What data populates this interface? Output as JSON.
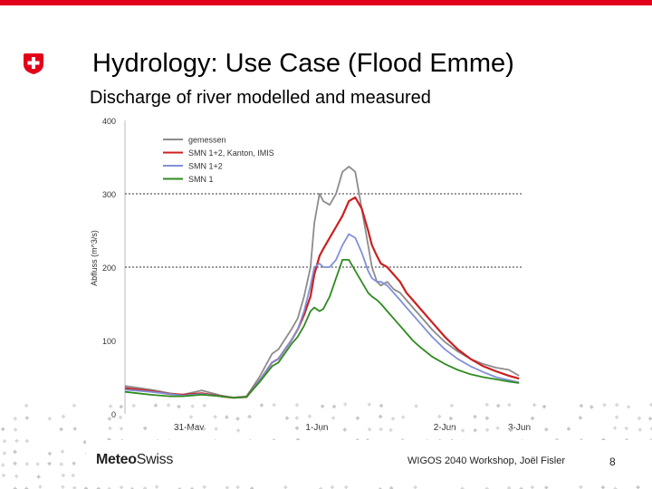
{
  "slide": {
    "title": "Hydrology: Use Case (Flood Emme)",
    "subtitle": "Discharge of river modelled and measured",
    "footer_text": "WIGOS 2040 Workshop, Joël Fisler",
    "page_number": "8",
    "logo_bold": "Meteo",
    "logo_light": "Swiss",
    "accent_color": "#e3001b"
  },
  "chart_data": {
    "type": "line",
    "title": "",
    "xlabel": "",
    "ylabel": "Abfluss (m^3/s)",
    "ylim": [
      0,
      400
    ],
    "yticks": [
      0,
      100,
      200,
      300,
      400
    ],
    "xlim": [
      0,
      3.1
    ],
    "xticks": [
      {
        "value": 0.5,
        "label": "31-May"
      },
      {
        "value": 1.5,
        "label": "1-Jun"
      },
      {
        "value": 2.5,
        "label": "2-Jun"
      },
      {
        "value": 3.5,
        "label": "3-Jun"
      }
    ],
    "gridlines_y": [
      200,
      300
    ],
    "legend_position": "top-left",
    "series": [
      {
        "name": "gemessen",
        "color": "#8c8c8c",
        "x": [
          0,
          0.2,
          0.35,
          0.45,
          0.6,
          0.75,
          0.85,
          0.95,
          1.05,
          1.15,
          1.2,
          1.3,
          1.35,
          1.4,
          1.45,
          1.48,
          1.52,
          1.55,
          1.6,
          1.65,
          1.7,
          1.75,
          1.8,
          1.85,
          1.9,
          1.93,
          1.97,
          2.0,
          2.05,
          2.1,
          2.15,
          2.2,
          2.25,
          2.3,
          2.4,
          2.5,
          2.6,
          2.7,
          2.8,
          2.9,
          3.0,
          3.08
        ],
        "y": [
          38,
          33,
          28,
          26,
          32,
          25,
          22,
          24,
          50,
          82,
          88,
          115,
          130,
          160,
          200,
          260,
          300,
          290,
          285,
          300,
          330,
          337,
          330,
          280,
          230,
          200,
          180,
          175,
          180,
          170,
          165,
          155,
          145,
          135,
          115,
          98,
          85,
          75,
          68,
          63,
          60,
          52
        ]
      },
      {
        "name": "SMN 1+2, Kanton, IMIS",
        "color": "#cc1f1f",
        "x": [
          0,
          0.2,
          0.35,
          0.45,
          0.6,
          0.75,
          0.85,
          0.95,
          1.05,
          1.15,
          1.2,
          1.3,
          1.35,
          1.4,
          1.45,
          1.48,
          1.52,
          1.55,
          1.6,
          1.65,
          1.7,
          1.75,
          1.8,
          1.85,
          1.9,
          1.93,
          1.97,
          2.0,
          2.05,
          2.1,
          2.15,
          2.2,
          2.25,
          2.3,
          2.4,
          2.5,
          2.6,
          2.7,
          2.8,
          2.9,
          3.0,
          3.08
        ],
        "y": [
          35,
          31,
          27,
          26,
          28,
          24,
          22,
          23,
          45,
          70,
          75,
          100,
          115,
          135,
          160,
          190,
          215,
          225,
          240,
          255,
          270,
          290,
          295,
          280,
          250,
          230,
          215,
          205,
          200,
          190,
          180,
          165,
          155,
          145,
          125,
          105,
          88,
          75,
          65,
          58,
          52,
          48
        ]
      },
      {
        "name": "SMN 1+2",
        "color": "#8090d8",
        "x": [
          0,
          0.2,
          0.35,
          0.45,
          0.6,
          0.75,
          0.85,
          0.95,
          1.05,
          1.15,
          1.2,
          1.3,
          1.35,
          1.4,
          1.45,
          1.48,
          1.52,
          1.55,
          1.6,
          1.65,
          1.7,
          1.75,
          1.8,
          1.85,
          1.9,
          1.93,
          1.97,
          2.0,
          2.05,
          2.1,
          2.15,
          2.2,
          2.25,
          2.3,
          2.4,
          2.5,
          2.6,
          2.7,
          2.8,
          2.9,
          3.0,
          3.08
        ],
        "y": [
          33,
          30,
          27,
          25,
          27,
          24,
          22,
          23,
          45,
          70,
          75,
          100,
          115,
          140,
          175,
          200,
          205,
          200,
          200,
          210,
          230,
          245,
          240,
          220,
          195,
          185,
          180,
          180,
          175,
          165,
          155,
          145,
          135,
          125,
          105,
          88,
          75,
          65,
          57,
          50,
          46,
          43
        ]
      },
      {
        "name": "SMN 1",
        "color": "#2e8b1e",
        "x": [
          0,
          0.2,
          0.35,
          0.45,
          0.6,
          0.75,
          0.85,
          0.95,
          1.05,
          1.15,
          1.2,
          1.3,
          1.35,
          1.4,
          1.45,
          1.48,
          1.52,
          1.55,
          1.6,
          1.65,
          1.7,
          1.75,
          1.8,
          1.85,
          1.9,
          1.93,
          1.97,
          2.0,
          2.05,
          2.1,
          2.15,
          2.2,
          2.25,
          2.3,
          2.4,
          2.5,
          2.6,
          2.7,
          2.8,
          2.9,
          3.0,
          3.08
        ],
        "y": [
          30,
          26,
          24,
          24,
          26,
          24,
          22,
          23,
          43,
          65,
          70,
          95,
          105,
          120,
          140,
          145,
          140,
          143,
          160,
          185,
          210,
          210,
          195,
          180,
          165,
          160,
          155,
          150,
          140,
          130,
          120,
          110,
          100,
          92,
          78,
          68,
          60,
          54,
          50,
          47,
          44,
          42
        ]
      }
    ]
  }
}
